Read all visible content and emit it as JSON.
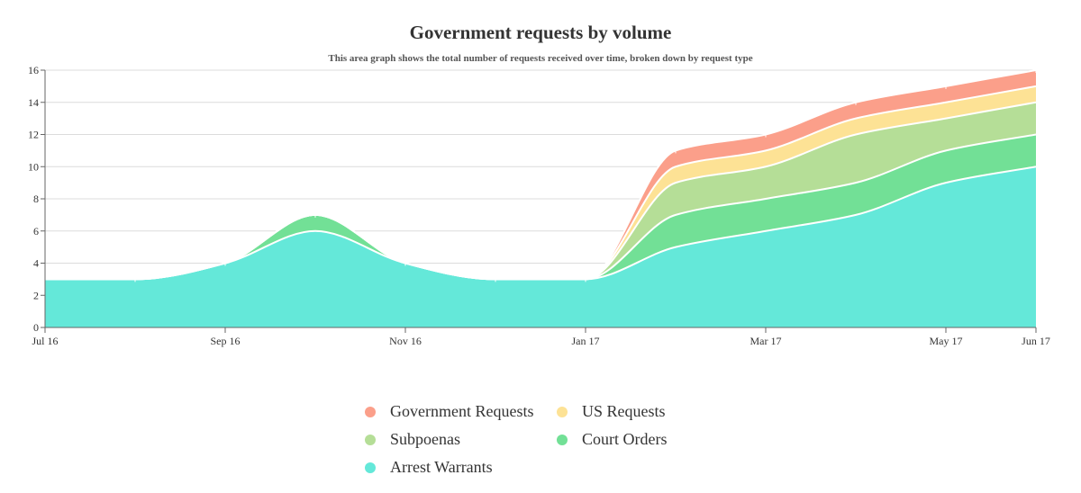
{
  "chart_data": {
    "type": "area",
    "stacked": true,
    "title": "Government requests by volume",
    "subtitle": "This area graph shows the total number of requests received over time, broken down by request type",
    "x": [
      "2016-07",
      "2016-08",
      "2016-09",
      "2016-10",
      "2016-11",
      "2016-12",
      "2017-01",
      "2017-02",
      "2017-03",
      "2017-04",
      "2017-05",
      "2017-06"
    ],
    "x_tick_labels": [
      "Jul 16",
      "Sep 16",
      "Nov 16",
      "Jan 17",
      "Mar 17",
      "May 17",
      "Jun 17"
    ],
    "ylim": [
      0,
      16
    ],
    "y_ticks": [
      0,
      2,
      4,
      6,
      8,
      10,
      12,
      14,
      16
    ],
    "grid": true,
    "legend_position": "bottom-center",
    "series": [
      {
        "name": "Arrest Warrants",
        "color": "#64e8d9",
        "values": [
          3,
          3,
          4,
          6,
          4,
          3,
          3,
          5,
          6,
          7,
          9,
          10
        ]
      },
      {
        "name": "Court Orders",
        "color": "#72e096",
        "values": [
          0,
          0,
          0,
          1,
          0,
          0,
          0,
          2,
          2,
          2,
          2,
          2
        ]
      },
      {
        "name": "Subpoenas",
        "color": "#b5de97",
        "values": [
          0,
          0,
          0,
          0,
          0,
          0,
          0,
          2,
          2,
          3,
          2,
          2
        ]
      },
      {
        "name": "US Requests",
        "color": "#fde295",
        "values": [
          0,
          0,
          0,
          0,
          0,
          0,
          0,
          1,
          1,
          1,
          1,
          1
        ]
      },
      {
        "name": "Government Requests",
        "color": "#fb9f8a",
        "values": [
          0,
          0,
          0,
          0,
          0,
          0,
          0,
          1,
          1,
          1,
          1,
          1
        ]
      }
    ]
  },
  "legend": {
    "items": [
      {
        "label": "Government Requests",
        "color": "#fb9f8a"
      },
      {
        "label": "US Requests",
        "color": "#fde295"
      },
      {
        "label": "Subpoenas",
        "color": "#b5de97"
      },
      {
        "label": "Court Orders",
        "color": "#72e096"
      },
      {
        "label": "Arrest Warrants",
        "color": "#64e8d9"
      }
    ]
  }
}
